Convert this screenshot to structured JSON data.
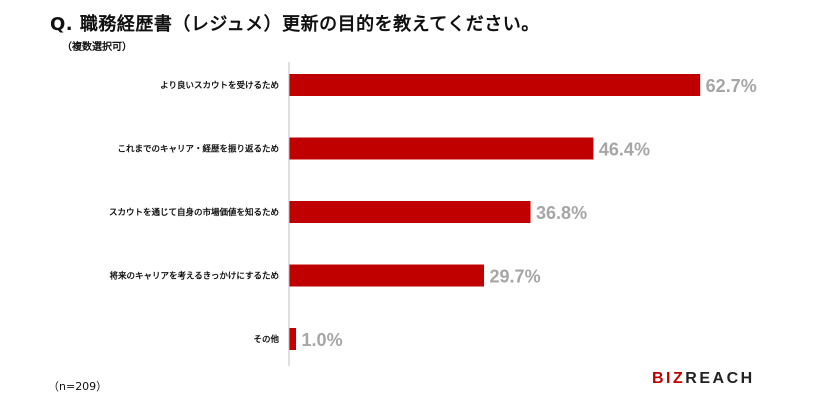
{
  "header": {
    "title": "Q. 職務経歴書（レジュメ）更新の目的を教えてください。",
    "subtitle": "（複数選択可）"
  },
  "footer": {
    "sample_size": "（n=209）",
    "brand_accent": "BIZ",
    "brand_rest": "REACH"
  },
  "chart_data": {
    "type": "bar",
    "orientation": "horizontal",
    "categories": [
      "より良いスカウトを受けるため",
      "これまでのキャリア・経歴を振り返るため",
      "スカウトを通じて自身の市場価値を知るため",
      "将来のキャリアを考えるきっかけにするため",
      "その他"
    ],
    "values": [
      62.7,
      46.4,
      36.8,
      29.7,
      1.0
    ],
    "value_labels": [
      "62.7%",
      "46.4%",
      "36.8%",
      "29.7%",
      "1.0%"
    ],
    "unit": "%",
    "xlim": [
      0,
      100
    ],
    "bar_color": "#c00000",
    "value_label_color": "#a6a6a6",
    "grid": false,
    "legend": "none"
  }
}
